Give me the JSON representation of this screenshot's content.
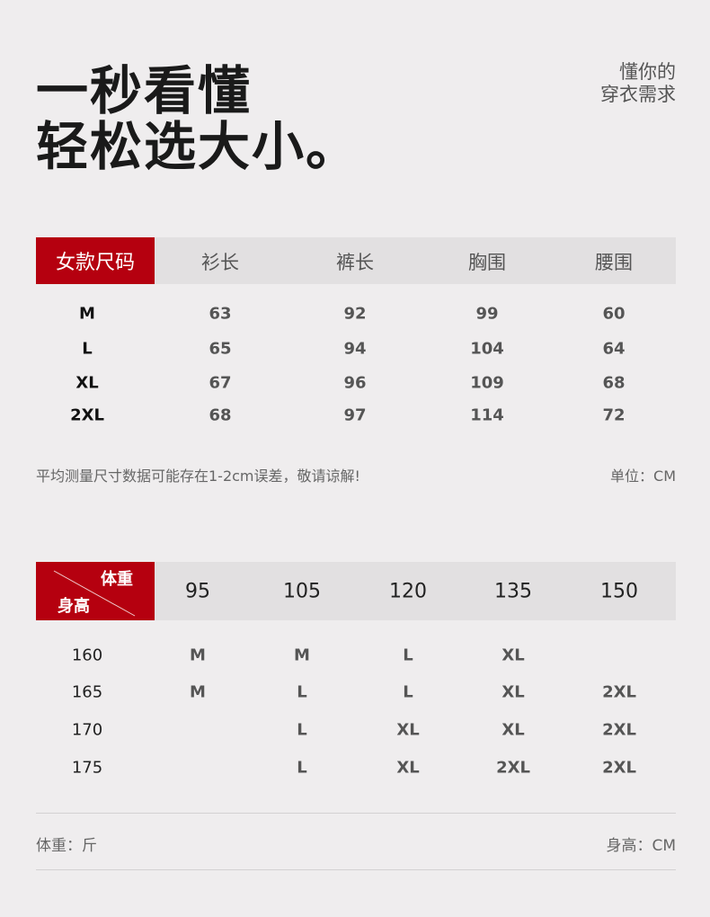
{
  "headline": {
    "line1": "一秒看懂",
    "line2": "轻松选大小。"
  },
  "tagline": {
    "line1": "懂你的",
    "line2": "穿衣需求"
  },
  "colors": {
    "accent": "#b5000f",
    "header_bg": "#e2e0e1",
    "page_bg": "#efedee"
  },
  "size_table": {
    "corner_label": "女款尺码",
    "columns": [
      "衫长",
      "裤长",
      "胸围",
      "腰围"
    ],
    "rows": [
      {
        "size": "M",
        "values": [
          "63",
          "92",
          "99",
          "60"
        ]
      },
      {
        "size": "L",
        "values": [
          "65",
          "94",
          "104",
          "64"
        ]
      },
      {
        "size": "XL",
        "values": [
          "67",
          "96",
          "109",
          "68"
        ]
      },
      {
        "size": "2XL",
        "values": [
          "68",
          "97",
          "114",
          "72"
        ]
      }
    ],
    "note": "平均测量尺寸数据可能存在1-2cm误差，敬请谅解!",
    "unit": "单位：CM"
  },
  "fit_table": {
    "corner_top": "体重",
    "corner_bottom": "身高",
    "weights": [
      "95",
      "105",
      "120",
      "135",
      "150"
    ],
    "rows": [
      {
        "height": "160",
        "sizes": [
          "M",
          "M",
          "L",
          "XL",
          ""
        ]
      },
      {
        "height": "165",
        "sizes": [
          "M",
          "L",
          "L",
          "XL",
          "2XL"
        ]
      },
      {
        "height": "170",
        "sizes": [
          "",
          "L",
          "XL",
          "XL",
          "2XL"
        ]
      },
      {
        "height": "175",
        "sizes": [
          "",
          "L",
          "XL",
          "2XL",
          "2XL"
        ]
      }
    ],
    "weight_unit": "体重：斤",
    "height_unit": "身高：CM"
  }
}
